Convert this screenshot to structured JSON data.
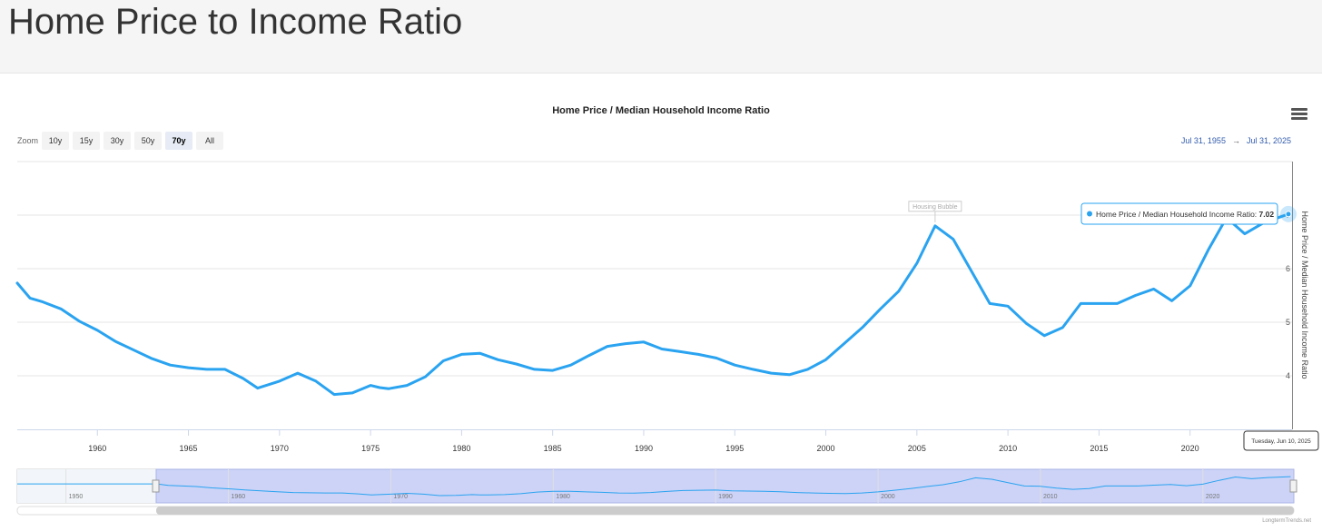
{
  "page": {
    "title": "Home Price to Income Ratio"
  },
  "credit": "LongtermTrends.net",
  "zoom": {
    "label": "Zoom",
    "buttons": [
      "10y",
      "15y",
      "30y",
      "50y",
      "70y",
      "All"
    ],
    "selected": "70y"
  },
  "range": {
    "from": "Jul 31, 1955",
    "arrow": "→",
    "to": "Jul 31, 2025"
  },
  "tooltip": {
    "series": "Home Price / Median Household Income Ratio:",
    "value": "7.02",
    "date": "Tuesday, Jun 10, 2025"
  },
  "chart_data": {
    "type": "line",
    "title": "Home Price / Median Household Income Ratio",
    "ylabel": "Home Price / Median Household Income Ratio",
    "y_axis_side": "right",
    "xlim": [
      1955.6,
      2025.6
    ],
    "ylim": [
      3,
      8
    ],
    "y_ticks": [
      4,
      5,
      6,
      7
    ],
    "x_ticks": [
      1960,
      1965,
      1970,
      1975,
      1980,
      1985,
      1990,
      1995,
      2000,
      2005,
      2010,
      2015,
      2020
    ],
    "x_tick_labels": [
      "1960",
      "1965",
      "1970",
      "1975",
      "1980",
      "1985",
      "1990",
      "1995",
      "2000",
      "2005",
      "2010",
      "2015",
      "2020"
    ],
    "line_color": "#2aa3f0",
    "annotation": {
      "text": "Housing Bubble",
      "x": 2006,
      "y": 6.8
    },
    "series": [
      {
        "name": "Home Price / Median Household Income Ratio",
        "x": [
          1955.6,
          1956.3,
          1957,
          1958,
          1959,
          1960,
          1961,
          1962,
          1963,
          1964,
          1965,
          1966,
          1967,
          1968,
          1968.8,
          1970,
          1971,
          1972,
          1973,
          1974,
          1975,
          1975.5,
          1976,
          1977,
          1978,
          1979,
          1980,
          1981,
          1982,
          1983,
          1984,
          1985,
          1986,
          1987,
          1988,
          1989,
          1990,
          1991,
          1992,
          1993,
          1994,
          1995,
          1996,
          1997,
          1998,
          1999,
          2000,
          2001,
          2002,
          2003,
          2004,
          2005,
          2006,
          2007,
          2008,
          2009,
          2010,
          2011,
          2012,
          2013,
          2014,
          2015,
          2016,
          2017,
          2018,
          2019,
          2020,
          2021,
          2022,
          2023,
          2024,
          2025.4
        ],
        "y": [
          5.73,
          5.45,
          5.38,
          5.25,
          5.02,
          4.85,
          4.64,
          4.48,
          4.32,
          4.2,
          4.15,
          4.12,
          4.12,
          3.95,
          3.77,
          3.9,
          4.05,
          3.9,
          3.65,
          3.68,
          3.82,
          3.78,
          3.76,
          3.82,
          3.98,
          4.28,
          4.4,
          4.42,
          4.3,
          4.22,
          4.12,
          4.1,
          4.2,
          4.38,
          4.55,
          4.6,
          4.63,
          4.5,
          4.45,
          4.4,
          4.33,
          4.2,
          4.12,
          4.05,
          4.02,
          4.12,
          4.3,
          4.6,
          4.9,
          5.25,
          5.58,
          6.1,
          6.8,
          6.55,
          5.95,
          5.35,
          5.3,
          4.98,
          4.75,
          4.9,
          5.35,
          5.35,
          5.35,
          5.5,
          5.62,
          5.4,
          5.68,
          6.35,
          6.95,
          6.65,
          6.85,
          7.02
        ]
      }
    ]
  }
}
